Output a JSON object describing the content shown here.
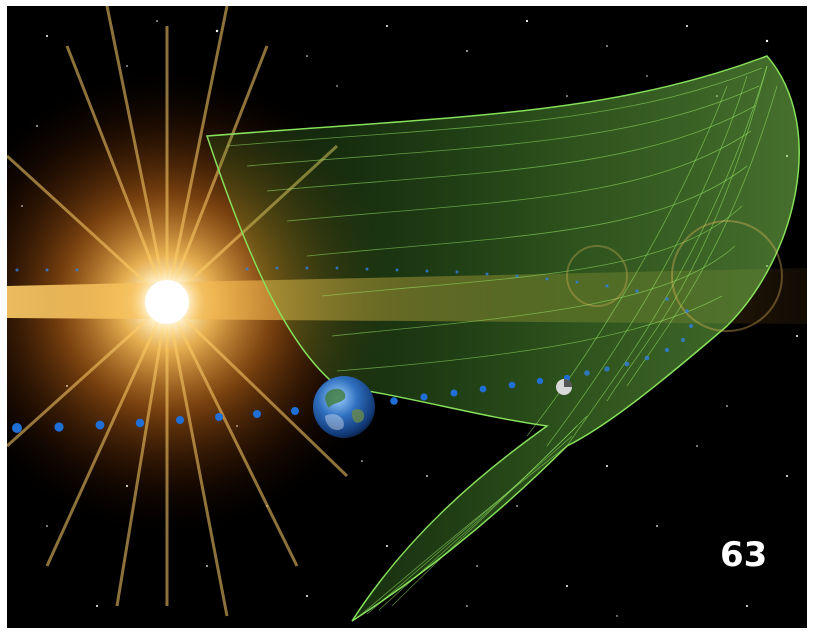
{
  "illustration": {
    "subject": "sun-earth-orbit-illustration",
    "background_color": "#000000",
    "sun_color": "#ffb347",
    "orbit_dot_color": "#1f6fd6",
    "trajectory_color": "#7ad14a"
  },
  "page_number": "63"
}
